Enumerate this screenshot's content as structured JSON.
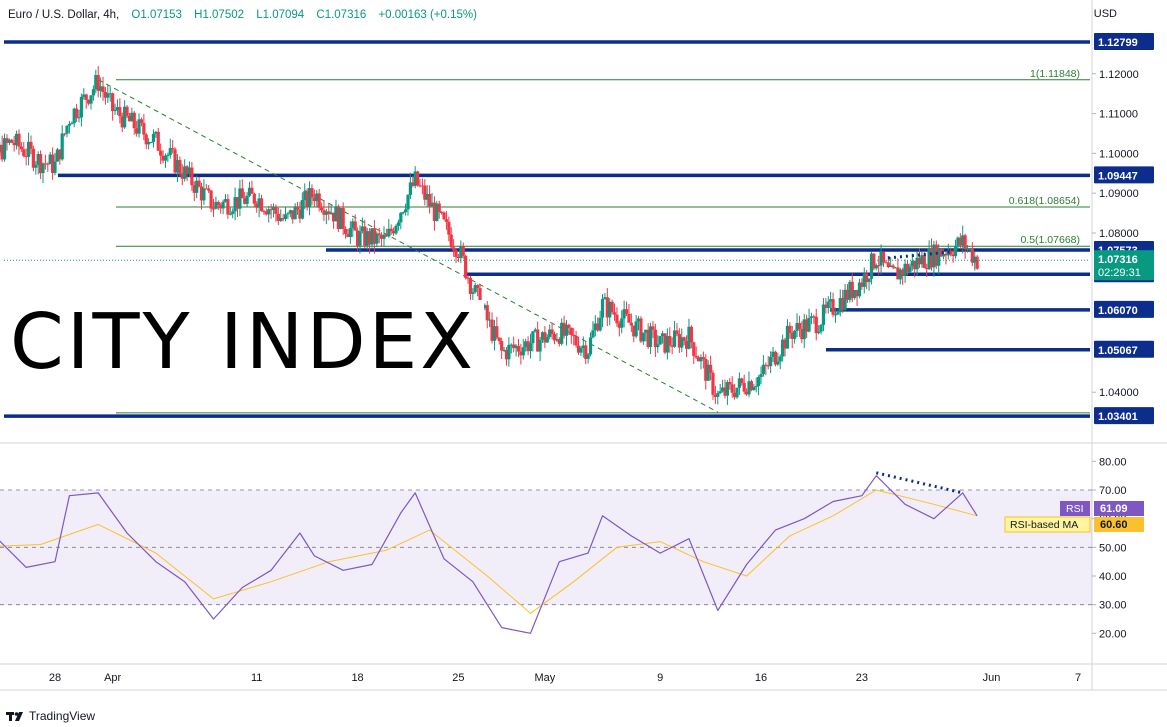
{
  "header": {
    "symbol": "Euro / U.S. Dollar, 4h,",
    "open": "O1.07153",
    "high": "H1.07502",
    "low": "L1.07094",
    "close": "C1.07316",
    "change": "+0.00163 (+0.15%)",
    "currency": "USD"
  },
  "watermark": "CITY INDEX",
  "footer": {
    "brand": "TradingView"
  },
  "colors": {
    "up": "#089981",
    "down": "#f23645",
    "level": "#0d2d8c",
    "fib": "#2e7d32",
    "rsi": "#7e57c2",
    "rsi_ma": "#fbc02d"
  },
  "chart_data": [
    {
      "type": "candlestick",
      "title": "Euro / U.S. Dollar, 4h",
      "ylabel": "USD",
      "ylim": [
        1.028,
        1.133
      ],
      "x_ticks": [
        "28",
        "Apr",
        "11",
        "18",
        "25",
        "May",
        "9",
        "16",
        "23",
        "Jun",
        "7"
      ],
      "price_axis_ticks": [
        "1.12000",
        "1.11000",
        "1.10000",
        "1.09000",
        "1.08000",
        "1.04000"
      ],
      "last_price": "1.07316",
      "countdown": "02:29:31",
      "horizontal_levels": [
        {
          "value": 1.12799,
          "label": "1.12799"
        },
        {
          "value": 1.09447,
          "label": "1.09447"
        },
        {
          "value": 1.07573,
          "label": "1.07573"
        },
        {
          "value": 1.06965,
          "label": "1.06965"
        },
        {
          "value": 1.0607,
          "label": "1.06070"
        },
        {
          "value": 1.05067,
          "label": "1.05067"
        },
        {
          "value": 1.03401,
          "label": "1.03401"
        }
      ],
      "fibonacci": [
        {
          "value": 1.11848,
          "label": "1(1.11848)"
        },
        {
          "value": 1.08654,
          "label": "0.618(1.08654)"
        },
        {
          "value": 1.07668,
          "label": "0.5(1.07668)"
        },
        {
          "value": 1.0348,
          "label": ""
        }
      ],
      "trendline_dashed": [
        {
          "x": "Mar 31",
          "y": 1.1185
        },
        {
          "x": "May 13",
          "y": 1.035
        }
      ],
      "path": [
        {
          "x": "Mar 22",
          "y": 1.101
        },
        {
          "x": "Mar 24",
          "y": 1.1
        },
        {
          "x": "Mar 25",
          "y": 1.103
        },
        {
          "x": "Mar 27",
          "y": 1.098
        },
        {
          "x": "Mar 28",
          "y": 1.097
        },
        {
          "x": "Mar 29",
          "y": 1.109
        },
        {
          "x": "Mar 31",
          "y": 1.118
        },
        {
          "x": "Apr 1",
          "y": 1.111
        },
        {
          "x": "Apr 4",
          "y": 1.103
        },
        {
          "x": "Apr 6",
          "y": 1.095
        },
        {
          "x": "Apr 8",
          "y": 1.087
        },
        {
          "x": "Apr 11",
          "y": 1.089
        },
        {
          "x": "Apr 13",
          "y": 1.083
        },
        {
          "x": "Apr 15",
          "y": 1.09
        },
        {
          "x": "Apr 18",
          "y": 1.079
        },
        {
          "x": "Apr 20",
          "y": 1.078
        },
        {
          "x": "Apr 21",
          "y": 1.086
        },
        {
          "x": "Apr 22",
          "y": 1.093
        },
        {
          "x": "Apr 25",
          "y": 1.076
        },
        {
          "x": "Apr 26",
          "y": 1.066
        },
        {
          "x": "Apr 28",
          "y": 1.05
        },
        {
          "x": "May 2",
          "y": 1.055
        },
        {
          "x": "May 4",
          "y": 1.051
        },
        {
          "x": "May 5",
          "y": 1.062
        },
        {
          "x": "May 9",
          "y": 1.052
        },
        {
          "x": "May 11",
          "y": 1.054
        },
        {
          "x": "May 13",
          "y": 1.039
        },
        {
          "x": "May 16",
          "y": 1.044
        },
        {
          "x": "May 18",
          "y": 1.055
        },
        {
          "x": "May 20",
          "y": 1.058
        },
        {
          "x": "May 23",
          "y": 1.068
        },
        {
          "x": "May 24",
          "y": 1.074
        },
        {
          "x": "May 25",
          "y": 1.069
        },
        {
          "x": "May 27",
          "y": 1.073
        },
        {
          "x": "May 30",
          "y": 1.0775
        },
        {
          "x": "May 31",
          "y": 1.0732
        }
      ]
    },
    {
      "type": "line",
      "title": "RSI",
      "ylim": [
        10,
        85
      ],
      "y_ticks": [
        "80.00",
        "70.00",
        "60.00",
        "50.00",
        "40.00",
        "30.00",
        "20.00"
      ],
      "band": [
        30,
        70
      ],
      "midline": 50,
      "series": [
        {
          "name": "RSI",
          "value_label": "61.09",
          "values": [
            {
              "x": "Mar 22",
              "y": 46
            },
            {
              "x": "Mar 24",
              "y": 53
            },
            {
              "x": "Mar 26",
              "y": 43
            },
            {
              "x": "Mar 28",
              "y": 45
            },
            {
              "x": "Mar 29",
              "y": 68
            },
            {
              "x": "Mar 31",
              "y": 69
            },
            {
              "x": "Apr 2",
              "y": 55
            },
            {
              "x": "Apr 4",
              "y": 45
            },
            {
              "x": "Apr 6",
              "y": 38
            },
            {
              "x": "Apr 8",
              "y": 25
            },
            {
              "x": "Apr 10",
              "y": 36
            },
            {
              "x": "Apr 12",
              "y": 42
            },
            {
              "x": "Apr 14",
              "y": 55
            },
            {
              "x": "Apr 15",
              "y": 47
            },
            {
              "x": "Apr 17",
              "y": 42
            },
            {
              "x": "Apr 19",
              "y": 44
            },
            {
              "x": "Apr 21",
              "y": 62
            },
            {
              "x": "Apr 22",
              "y": 69
            },
            {
              "x": "Apr 24",
              "y": 46
            },
            {
              "x": "Apr 26",
              "y": 38
            },
            {
              "x": "Apr 28",
              "y": 22
            },
            {
              "x": "Apr 30",
              "y": 20
            },
            {
              "x": "May 2",
              "y": 45
            },
            {
              "x": "May 4",
              "y": 48
            },
            {
              "x": "May 5",
              "y": 61
            },
            {
              "x": "May 7",
              "y": 54
            },
            {
              "x": "May 9",
              "y": 48
            },
            {
              "x": "May 11",
              "y": 53
            },
            {
              "x": "May 13",
              "y": 28
            },
            {
              "x": "May 15",
              "y": 44
            },
            {
              "x": "May 17",
              "y": 56
            },
            {
              "x": "May 19",
              "y": 60
            },
            {
              "x": "May 21",
              "y": 66
            },
            {
              "x": "May 23",
              "y": 68
            },
            {
              "x": "May 24",
              "y": 75
            },
            {
              "x": "May 26",
              "y": 65
            },
            {
              "x": "May 28",
              "y": 60
            },
            {
              "x": "May 30",
              "y": 69
            },
            {
              "x": "May 31",
              "y": 61
            }
          ]
        },
        {
          "name": "RSI-based MA",
          "value_label": "60.60",
          "values": [
            {
              "x": "Mar 22",
              "y": 50
            },
            {
              "x": "Mar 27",
              "y": 51
            },
            {
              "x": "Mar 31",
              "y": 58
            },
            {
              "x": "Apr 4",
              "y": 48
            },
            {
              "x": "Apr 8",
              "y": 32
            },
            {
              "x": "Apr 12",
              "y": 38
            },
            {
              "x": "Apr 16",
              "y": 45
            },
            {
              "x": "Apr 20",
              "y": 49
            },
            {
              "x": "Apr 23",
              "y": 56
            },
            {
              "x": "Apr 27",
              "y": 40
            },
            {
              "x": "Apr 30",
              "y": 27
            },
            {
              "x": "May 3",
              "y": 38
            },
            {
              "x": "May 6",
              "y": 50
            },
            {
              "x": "May 9",
              "y": 52
            },
            {
              "x": "May 12",
              "y": 45
            },
            {
              "x": "May 15",
              "y": 40
            },
            {
              "x": "May 18",
              "y": 54
            },
            {
              "x": "May 21",
              "y": 61
            },
            {
              "x": "May 24",
              "y": 70
            },
            {
              "x": "May 28",
              "y": 65
            },
            {
              "x": "May 31",
              "y": 61
            }
          ]
        }
      ],
      "divergence_line": [
        {
          "x": "May 24",
          "y": 76
        },
        {
          "x": "May 30",
          "y": 69
        }
      ]
    }
  ]
}
